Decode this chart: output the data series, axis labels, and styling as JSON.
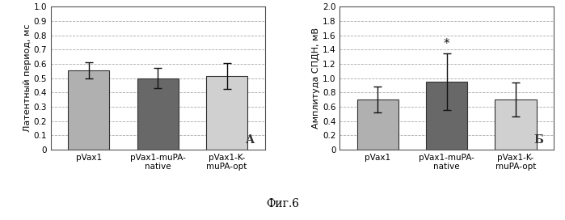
{
  "left_chart": {
    "categories": [
      "pVax1",
      "pVax1-muPA-\nnative",
      "pVax1-K-\nmuPA-opt"
    ],
    "values": [
      0.555,
      0.5,
      0.515
    ],
    "errors": [
      0.055,
      0.07,
      0.09
    ],
    "bar_colors": [
      "#b0b0b0",
      "#686868",
      "#d0d0d0"
    ],
    "ylabel": "Латентный период, мс",
    "ylim": [
      0,
      1.0
    ],
    "yticks": [
      0,
      0.1,
      0.2,
      0.3,
      0.4,
      0.5,
      0.6,
      0.7,
      0.8,
      0.9,
      1.0
    ],
    "label": "А"
  },
  "right_chart": {
    "categories": [
      "pVax1",
      "pVax1-muPA-\nnative",
      "pVax1-K-\nmuPA-opt"
    ],
    "values": [
      0.7,
      0.95,
      0.7
    ],
    "errors": [
      0.18,
      0.4,
      0.24
    ],
    "bar_colors": [
      "#b0b0b0",
      "#686868",
      "#d0d0d0"
    ],
    "ylabel": "Амплитуда СПДН, мВ",
    "ylim": [
      0,
      2.0
    ],
    "yticks": [
      0,
      0.2,
      0.4,
      0.6,
      0.8,
      1.0,
      1.2,
      1.4,
      1.6,
      1.8,
      2.0
    ],
    "label": "Б",
    "star_index": 1
  },
  "caption": "Фиг.6",
  "background_color": "#ffffff",
  "grid_color": "#aaaaaa",
  "bar_edge_color": "#333333",
  "error_color": "#111111",
  "label_fontsize": 8,
  "tick_fontsize": 7.5,
  "caption_fontsize": 10
}
